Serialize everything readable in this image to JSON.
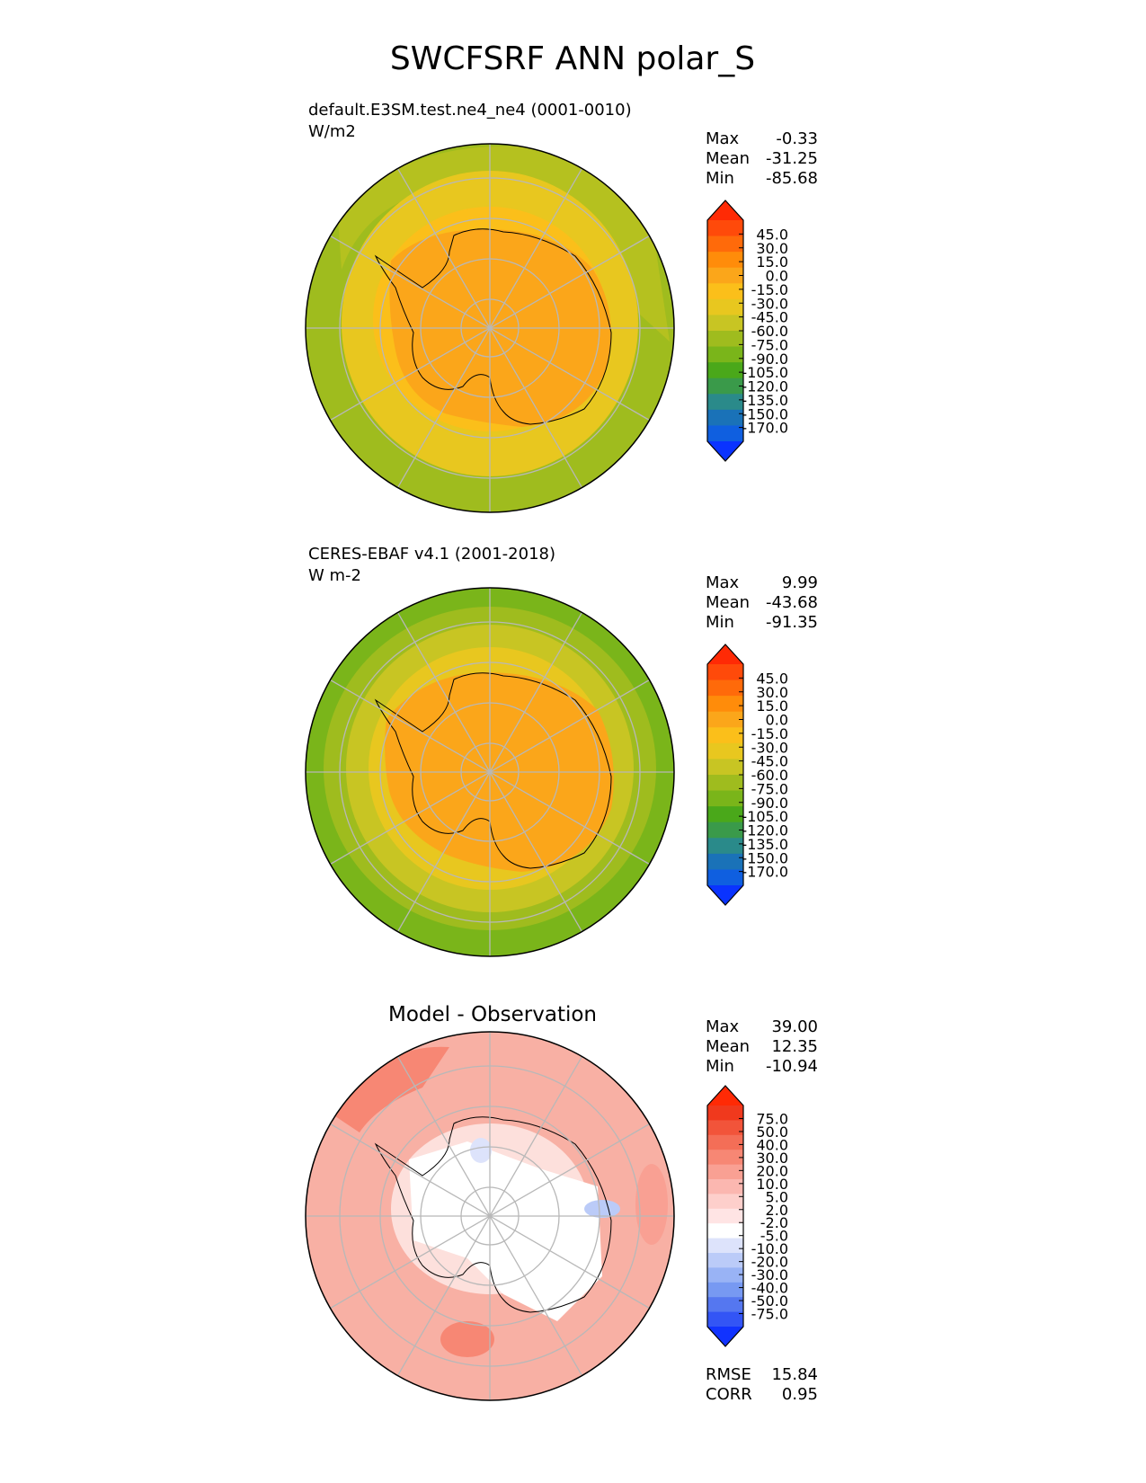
{
  "figure": {
    "title": "SWCFSRF ANN polar_S"
  },
  "colors": {
    "test_ref_levels": [
      "#0a33ff",
      "#0f5fe0",
      "#1a72b8",
      "#2a8a8a",
      "#3a9a4a",
      "#4aa81a",
      "#7ab51a",
      "#9fbc1e",
      "#c8c523",
      "#e8c71f",
      "#fbbf1a",
      "#fba61a",
      "#ff8c0a",
      "#ff6a0a",
      "#ff4a0a",
      "#ff2a05"
    ],
    "diff_levels": [
      "#1133ff",
      "#3355f5",
      "#5577f0",
      "#7799f2",
      "#99b3f5",
      "#bbcbf8",
      "#dde3fb",
      "#ffffff",
      "#ffe4e4",
      "#fdcfcb",
      "#fbb7b0",
      "#f9a093",
      "#f78774",
      "#f46e57",
      "#f2543a",
      "#f0391d",
      "#ff2a05"
    ],
    "field_test": [
      "#9fbc1e",
      "#b5c11f",
      "#e8c71f",
      "#fbbf1a",
      "#fba61a"
    ],
    "field_ref": [
      "#7ab51a",
      "#9fbc1e",
      "#c8c523",
      "#e8c71f",
      "#fba61a"
    ],
    "field_diff": [
      "#f8b0a4",
      "#fbc9c2",
      "#fde0dc",
      "#ffffff",
      "#ffffff"
    ]
  },
  "chart_data": [
    {
      "type": "heatmap",
      "name": "test",
      "title": "default.E3SM.test.ne4_ne4 (0001-0010)",
      "units": "W/m2",
      "stats": {
        "max": "-0.33",
        "mean": "-31.25",
        "min": "-85.68"
      },
      "colorbar_levels": [
        "45.0",
        "30.0",
        "15.0",
        "0.0",
        "-15.0",
        "-30.0",
        "-45.0",
        "-60.0",
        "-75.0",
        "-90.0",
        "-105.0",
        "-120.0",
        "-135.0",
        "-150.0",
        "-170.0"
      ]
    },
    {
      "type": "heatmap",
      "name": "reference",
      "title": "CERES-EBAF v4.1 (2001-2018)",
      "units": "W m-2",
      "stats": {
        "max": "9.99",
        "mean": "-43.68",
        "min": "-91.35"
      },
      "colorbar_levels": [
        "45.0",
        "30.0",
        "15.0",
        "0.0",
        "-15.0",
        "-30.0",
        "-45.0",
        "-60.0",
        "-75.0",
        "-90.0",
        "-105.0",
        "-120.0",
        "-135.0",
        "-150.0",
        "-170.0"
      ]
    },
    {
      "type": "heatmap",
      "name": "difference",
      "title": "Model - Observation",
      "stats": {
        "max": "39.00",
        "mean": "12.35",
        "min": "-10.94"
      },
      "colorbar_levels": [
        "75.0",
        "50.0",
        "40.0",
        "30.0",
        "20.0",
        "10.0",
        "5.0",
        "2.0",
        "-2.0",
        "-5.0",
        "-10.0",
        "-20.0",
        "-30.0",
        "-40.0",
        "-50.0",
        "-75.0"
      ],
      "metrics": {
        "rmse": "15.84",
        "corr": "0.95"
      }
    }
  ],
  "labels": {
    "max": "Max",
    "mean": "Mean",
    "min": "Min",
    "rmse": "RMSE",
    "corr": "CORR"
  }
}
